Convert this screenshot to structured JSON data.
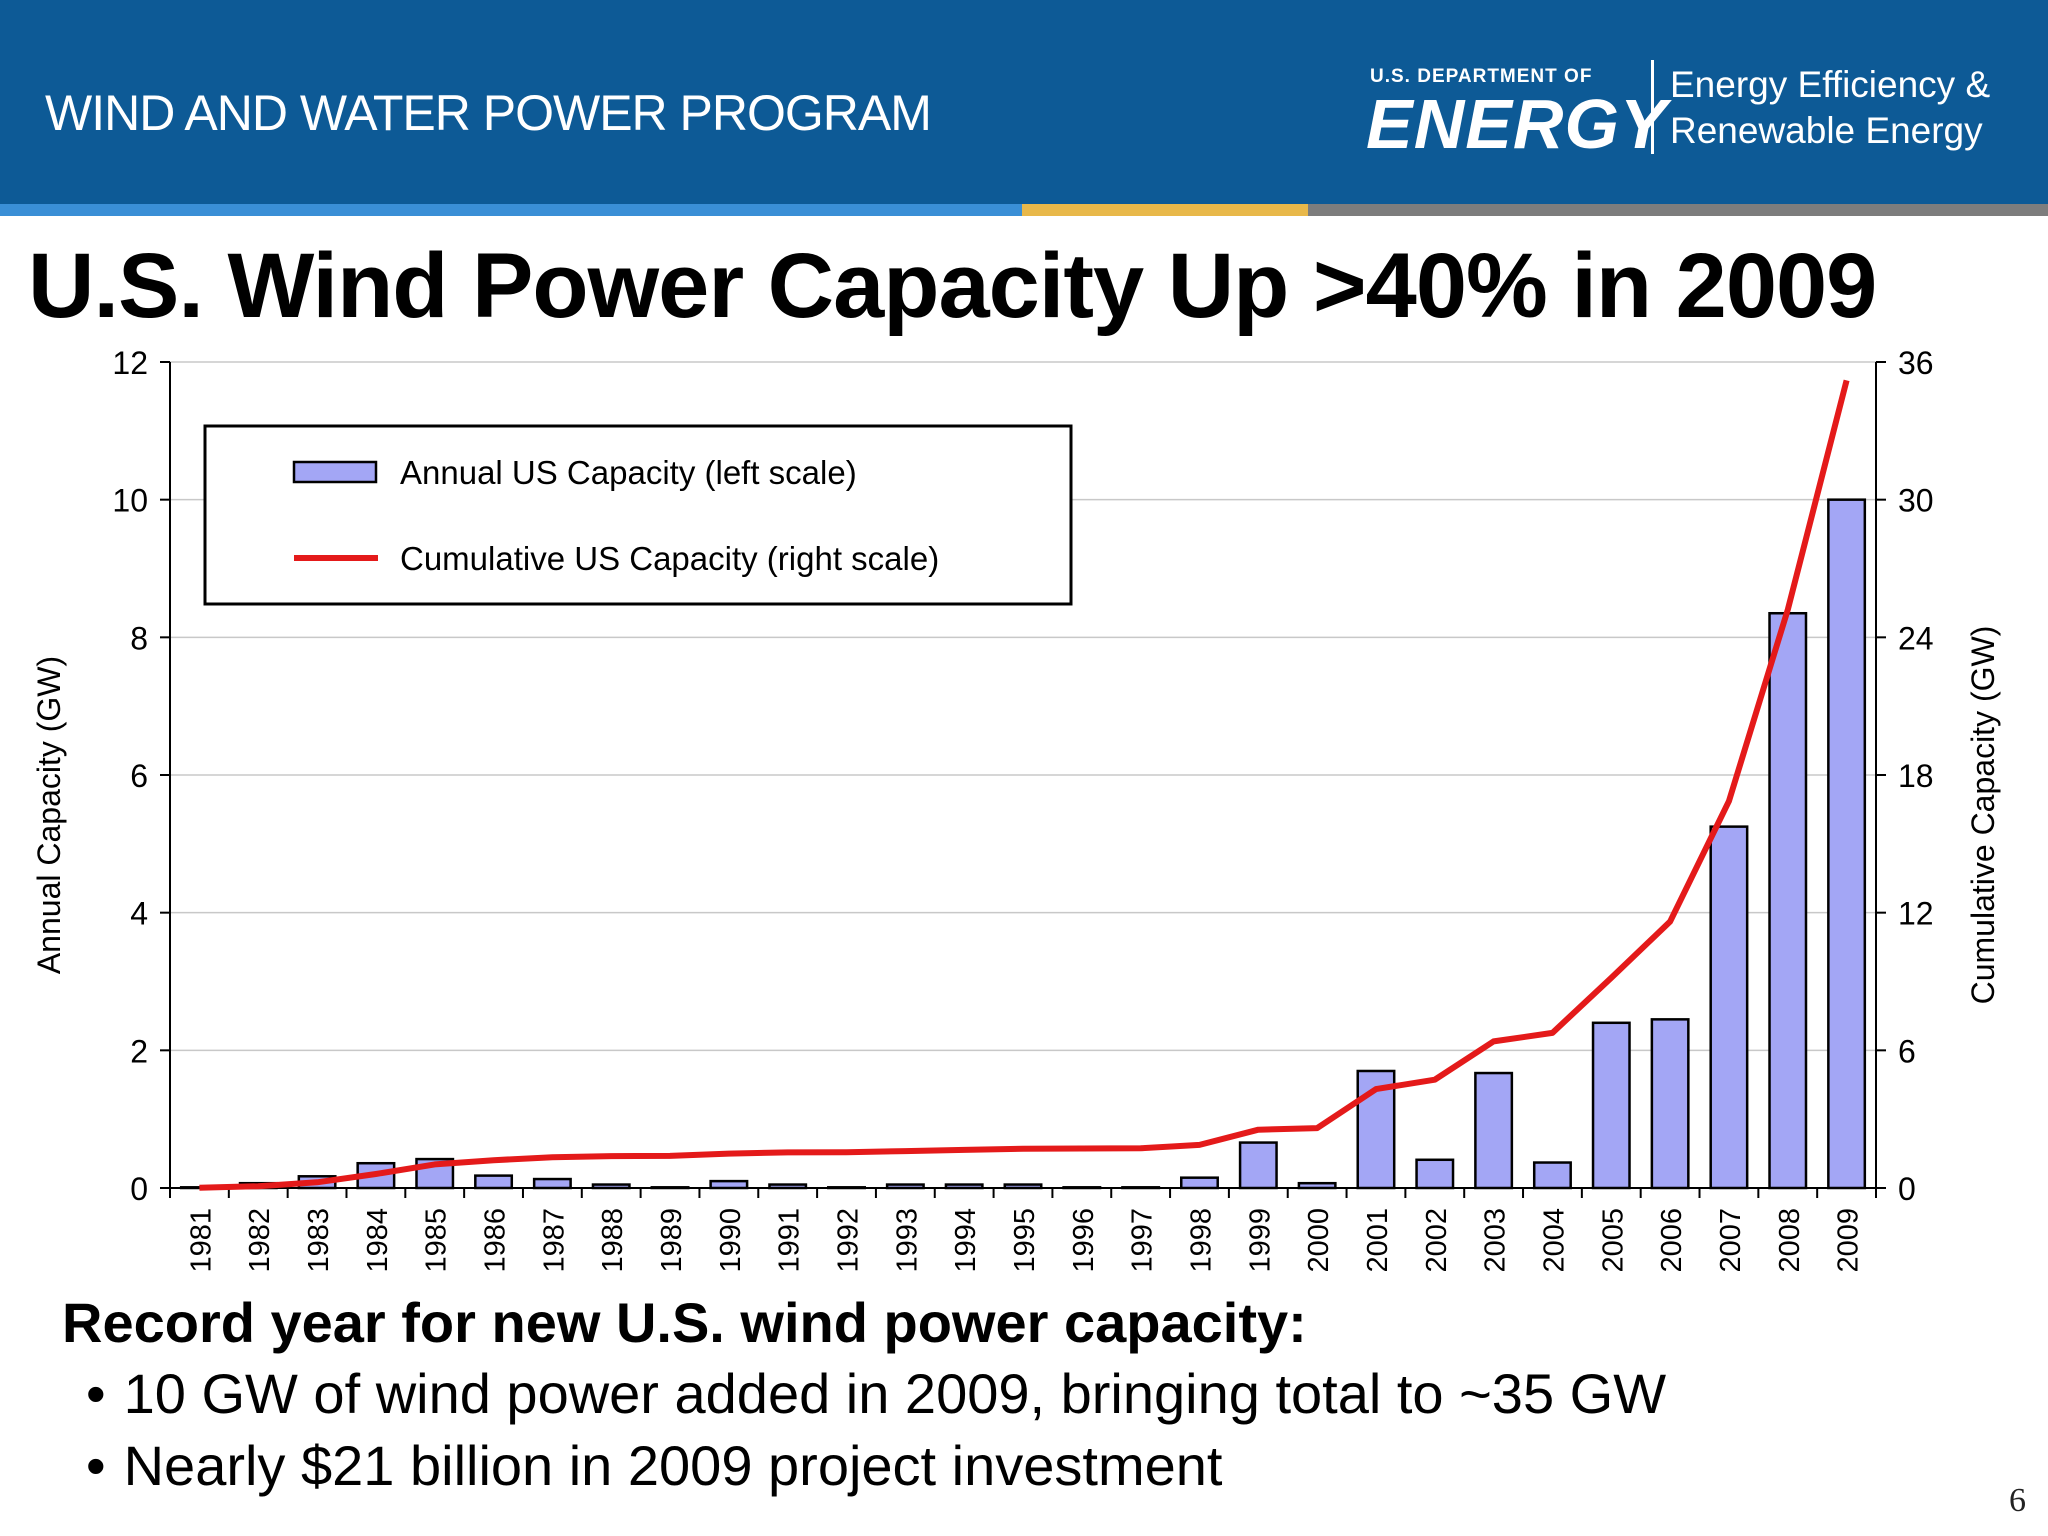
{
  "header": {
    "program_title": "WIND AND WATER POWER PROGRAM",
    "logo_dept": "U.S. DEPARTMENT OF",
    "logo_energy": "ENERGY",
    "eere_line1": "Energy Efficiency &",
    "eere_line2": "Renewable Energy",
    "colors": {
      "band": "#0d5a96",
      "stripe_blue": "#3a8fd6",
      "stripe_gold": "#e8b84a",
      "stripe_gray": "#7d7d7d"
    }
  },
  "slide": {
    "title": "U.S. Wind Power Capacity Up >40% in 2009",
    "subheading": "Record year for new U.S. wind power capacity:",
    "bullets": [
      "10 GW of wind power added in 2009, bringing total to ~35 GW",
      "Nearly $21 billion in 2009 project investment"
    ],
    "page_number": "6"
  },
  "chart_data": {
    "type": "bar",
    "categories": [
      "1981",
      "1982",
      "1983",
      "1984",
      "1985",
      "1986",
      "1987",
      "1988",
      "1989",
      "1990",
      "1991",
      "1992",
      "1993",
      "1994",
      "1995",
      "1996",
      "1997",
      "1998",
      "1999",
      "2000",
      "2001",
      "2002",
      "2003",
      "2004",
      "2005",
      "2006",
      "2007",
      "2008",
      "2009"
    ],
    "series": [
      {
        "name": "Annual US Capacity (left scale)",
        "type": "bar",
        "axis": "left",
        "color": "#a3a6f5",
        "values": [
          0.01,
          0.07,
          0.17,
          0.36,
          0.42,
          0.18,
          0.13,
          0.05,
          0.01,
          0.1,
          0.05,
          0.01,
          0.05,
          0.05,
          0.05,
          0.01,
          0.01,
          0.15,
          0.66,
          0.07,
          1.7,
          0.41,
          1.67,
          0.37,
          2.4,
          2.45,
          5.25,
          8.35,
          10.0
        ]
      },
      {
        "name": "Cumulative US Capacity (right scale)",
        "type": "line",
        "axis": "right",
        "color": "#e41a1a",
        "values": [
          0.01,
          0.08,
          0.25,
          0.61,
          1.03,
          1.21,
          1.34,
          1.39,
          1.4,
          1.5,
          1.55,
          1.56,
          1.61,
          1.66,
          1.71,
          1.72,
          1.73,
          1.88,
          2.54,
          2.61,
          4.31,
          4.72,
          6.39,
          6.76,
          9.16,
          11.61,
          16.86,
          25.21,
          35.2
        ]
      }
    ],
    "ylabel": "Annual Capacity (GW)",
    "y2label": "Cumulative Capacity (GW)",
    "ylim": [
      0,
      12
    ],
    "y2lim": [
      0,
      36
    ],
    "yticks": [
      "0",
      "2",
      "4",
      "6",
      "8",
      "10",
      "12"
    ],
    "y2ticks": [
      "0",
      "6",
      "12",
      "18",
      "24",
      "30",
      "36"
    ],
    "grid": true,
    "legend_position": "top-left"
  }
}
